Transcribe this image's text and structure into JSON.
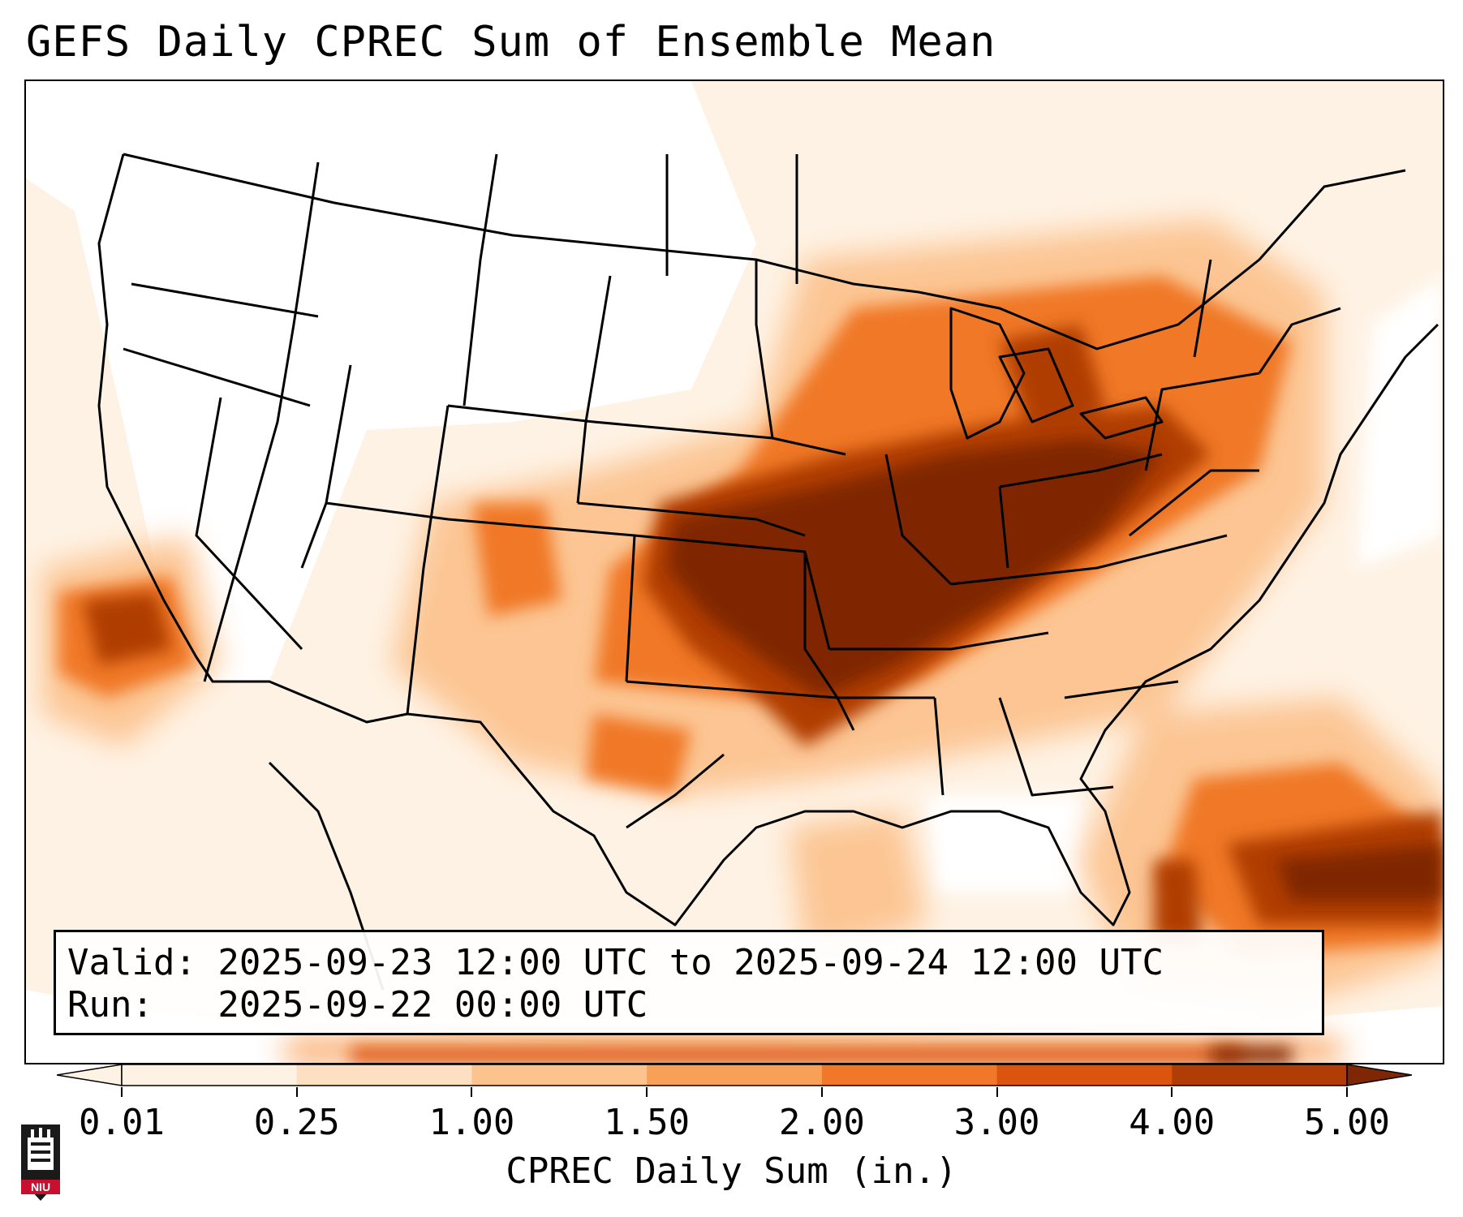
{
  "title": "GEFS Daily CPREC Sum of Ensemble Mean",
  "validity": {
    "valid_line": "Valid: 2025-09-23 12:00 UTC to 2025-09-24 12:00 UTC",
    "run_line": "Run:   2025-09-22 00:00 UTC"
  },
  "colorbar": {
    "label": "CPREC Daily Sum (in.)",
    "ticks": [
      "0.01",
      "0.25",
      "1.00",
      "1.50",
      "2.00",
      "3.00",
      "4.00",
      "5.00"
    ],
    "colors": [
      "#fef2e4",
      "#fde0c2",
      "#fcc38f",
      "#f9a058",
      "#f07828",
      "#dc550f",
      "#b03d05",
      "#7f2704"
    ]
  },
  "logo": {
    "text": "NIU",
    "color": "#c8102e"
  },
  "map": {
    "projection": "Lambert conformal, CONUS",
    "region_feature": "precipitation field with state boundaries"
  }
}
